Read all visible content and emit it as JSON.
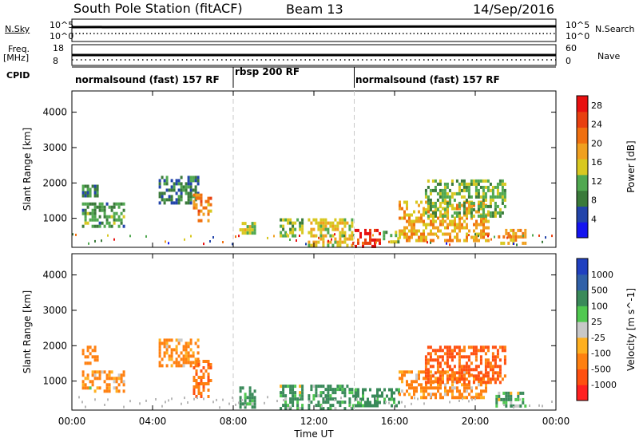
{
  "header": {
    "station": "South Pole Station (fitACF)",
    "beam": "Beam 13",
    "date": "14/Sep/2016"
  },
  "status_panels": {
    "nsky_label": "N.Sky",
    "nsky_ticks": [
      "10^5",
      "10^0"
    ],
    "nsearch_label": "N.Search",
    "nsearch_ticks": [
      "10^5",
      "10^0"
    ],
    "freq_label": "Freq.",
    "freq_unit": "[MHz]",
    "freq_ticks": [
      "18",
      "8"
    ],
    "nave_label": "Nave",
    "nave_ticks": [
      "60",
      "0"
    ],
    "cpid_label": "CPID",
    "modes": [
      {
        "label": "normalsound (fast) 157 RF",
        "start_hour": 0,
        "end_hour": 8
      },
      {
        "label": "rbsp 200 RF",
        "start_hour": 8,
        "end_hour": 14
      },
      {
        "label": "normalsound (fast) 157 RF",
        "start_hour": 14,
        "end_hour": 24
      }
    ]
  },
  "colors": {
    "power_scale": [
      "#1414f0",
      "#2244aa",
      "#3a7a3a",
      "#50a850",
      "#d8c820",
      "#f0a020",
      "#f07010",
      "#e84010",
      "#e81010"
    ],
    "velocity_scale": [
      "#ff2020",
      "#ff5010",
      "#ff8010",
      "#ffb020",
      "#c8c8c8",
      "#50c850",
      "#3a8a5a",
      "#3060a8",
      "#2040c0"
    ]
  },
  "chart_data": [
    {
      "type": "heatmap",
      "title": "",
      "xlabel": "",
      "ylabel": "Slant Range [km]",
      "x_ticks": [
        "00:00",
        "04:00",
        "08:00",
        "12:00",
        "16:00",
        "20:00",
        "00:00"
      ],
      "xlim_hours": [
        0,
        24
      ],
      "ylim": [
        180,
        4600
      ],
      "y_ticks": [
        1000,
        2000,
        3000,
        4000
      ],
      "colorbar_label": "Power [dB]",
      "colorbar_ticks": [
        "4",
        "8",
        "12",
        "16",
        "20",
        "24",
        "28"
      ],
      "colorbar_range": [
        0,
        30
      ],
      "regions": [
        {
          "t0": 0.5,
          "t1": 2.6,
          "r0": 800,
          "r1": 1450,
          "v": 10
        },
        {
          "t0": 0.5,
          "t1": 1.3,
          "r0": 1600,
          "r1": 1950,
          "v": 8
        },
        {
          "t0": 4.3,
          "t1": 6.3,
          "r0": 1400,
          "r1": 2200,
          "v": 8
        },
        {
          "t0": 6.0,
          "t1": 6.9,
          "r0": 900,
          "r1": 1700,
          "v": 20
        },
        {
          "t0": 8.3,
          "t1": 9.1,
          "r0": 600,
          "r1": 900,
          "v": 14
        },
        {
          "t0": 10.3,
          "t1": 11.4,
          "r0": 500,
          "r1": 1000,
          "v": 12
        },
        {
          "t0": 11.7,
          "t1": 13.9,
          "r0": 200,
          "r1": 1000,
          "v": 16
        },
        {
          "t0": 13.9,
          "t1": 15.3,
          "r0": 200,
          "r1": 700,
          "v": 27
        },
        {
          "t0": 15.3,
          "t1": 16.2,
          "r0": 300,
          "r1": 650,
          "v": 12
        },
        {
          "t0": 16.2,
          "t1": 20.6,
          "r0": 400,
          "r1": 1500,
          "v": 18
        },
        {
          "t0": 17.5,
          "t1": 21.5,
          "r0": 1100,
          "r1": 2100,
          "v": 12
        },
        {
          "t0": 21.0,
          "t1": 22.5,
          "r0": 250,
          "r1": 700,
          "v": 18
        }
      ]
    },
    {
      "type": "heatmap",
      "title": "",
      "xlabel": "Time UT",
      "ylabel": "Slant Range [km]",
      "x_ticks": [
        "00:00",
        "04:00",
        "08:00",
        "12:00",
        "16:00",
        "20:00",
        "00:00"
      ],
      "xlim_hours": [
        0,
        24
      ],
      "ylim": [
        180,
        4600
      ],
      "y_ticks": [
        1000,
        2000,
        3000,
        4000
      ],
      "colorbar_label": "Velocity [m s^-1]",
      "colorbar_ticks": [
        "1000",
        "500",
        "100",
        "25",
        "-25",
        "-100",
        "-500",
        "-1000"
      ],
      "colorbar_levels": [
        -1000,
        -500,
        -100,
        -25,
        25,
        100,
        500,
        1000
      ],
      "regions": [
        {
          "t0": 0.5,
          "t1": 2.6,
          "r0": 700,
          "r1": 1300,
          "v": -150
        },
        {
          "t0": 0.5,
          "t1": 1.3,
          "r0": 1500,
          "r1": 2000,
          "v": -300
        },
        {
          "t0": 4.3,
          "t1": 6.3,
          "r0": 1400,
          "r1": 2200,
          "v": -200
        },
        {
          "t0": 6.0,
          "t1": 6.9,
          "r0": 600,
          "r1": 1600,
          "v": -400
        },
        {
          "t0": 8.3,
          "t1": 9.1,
          "r0": 300,
          "r1": 850,
          "v": 200
        },
        {
          "t0": 10.3,
          "t1": 11.4,
          "r0": 200,
          "r1": 900,
          "v": 150
        },
        {
          "t0": 11.7,
          "t1": 13.9,
          "r0": 200,
          "r1": 900,
          "v": 200
        },
        {
          "t0": 13.9,
          "t1": 16.2,
          "r0": 300,
          "r1": 800,
          "v": 250
        },
        {
          "t0": 16.2,
          "t1": 20.5,
          "r0": 500,
          "r1": 1300,
          "v": -200
        },
        {
          "t0": 17.5,
          "t1": 21.5,
          "r0": 1000,
          "r1": 2000,
          "v": -600
        },
        {
          "t0": 21.0,
          "t1": 22.5,
          "r0": 250,
          "r1": 700,
          "v": 150
        }
      ]
    }
  ]
}
